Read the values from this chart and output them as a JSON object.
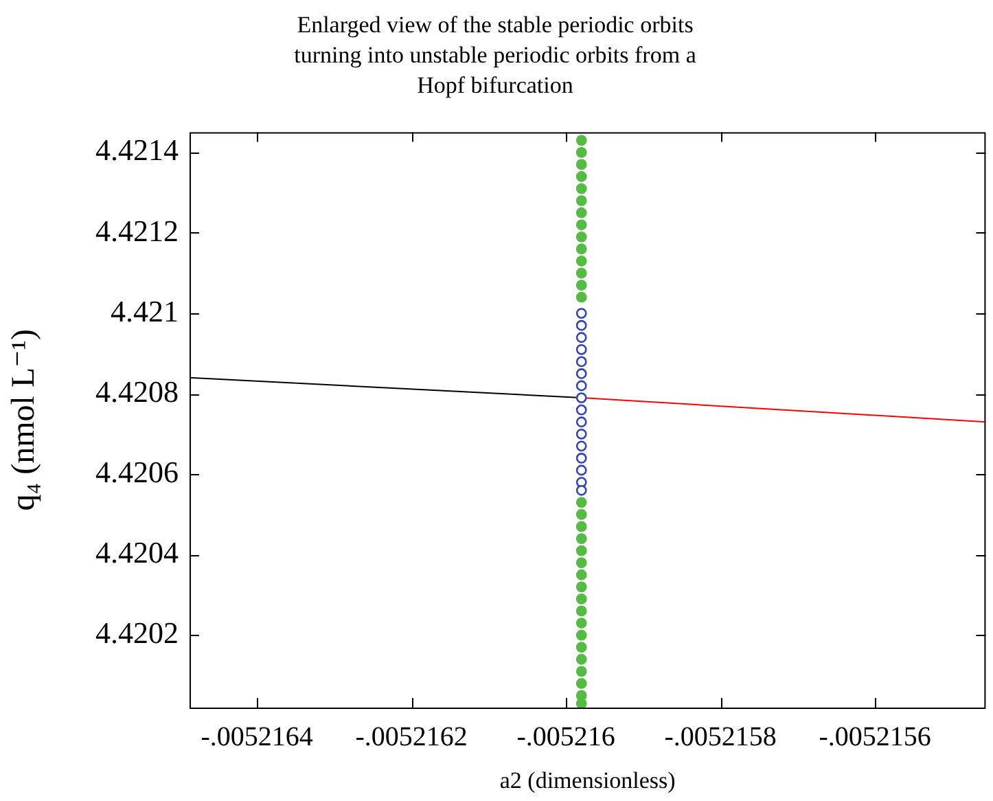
{
  "chart_data": {
    "type": "line",
    "title": "Enlarged view of the stable periodic orbits\nturning into unstable periodic orbits from a\nHopf bifurcation",
    "xlabel": "a2 (dimensionless)",
    "ylabel": "q₄ (nmol L⁻¹)",
    "xlim": [
      -0.0052164873,
      -0.0052154567
    ],
    "ylim": [
      4.42002,
      4.42145
    ],
    "xticks": [
      {
        "value": -0.0052164,
        "label": "-.0052164"
      },
      {
        "value": -0.0052162,
        "label": "-.0052162"
      },
      {
        "value": -0.005216,
        "label": "-.005216"
      },
      {
        "value": -0.0052158,
        "label": "-.0052158"
      },
      {
        "value": -0.0052156,
        "label": "-.0052156"
      }
    ],
    "yticks": [
      4.4202,
      4.4204,
      4.4206,
      4.4208,
      4.421,
      4.4212,
      4.4214
    ],
    "grid": false,
    "legend": false,
    "series": [
      {
        "color": "#000000",
        "marker": "none",
        "line_style": "solid",
        "x": [
          -0.0052164873,
          -0.00521598
        ],
        "values": [
          4.42084,
          4.42079
        ]
      },
      {
        "color": "#ff0000",
        "marker": "none",
        "line_style": "solid",
        "x": [
          -0.00521598,
          -0.0052154567
        ],
        "values": [
          4.42079,
          4.42073
        ]
      },
      {
        "type": "scatter",
        "color": "#55bb44",
        "marker": "circle",
        "x": [
          -0.00521598,
          -0.00521598,
          -0.00521598,
          -0.00521598,
          -0.00521598,
          -0.00521598,
          -0.00521598,
          -0.00521598,
          -0.00521598,
          -0.00521598,
          -0.00521598,
          -0.00521598,
          -0.00521598,
          -0.00521598,
          -0.00521598,
          -0.00521598,
          -0.00521598,
          -0.00521598,
          -0.00521598,
          -0.00521598,
          -0.00521598,
          -0.00521598,
          -0.00521598,
          -0.00521598,
          -0.00521598,
          -0.00521598,
          -0.00521598,
          -0.00521598,
          -0.00521598,
          -0.00521598,
          -0.00521598,
          -0.00521598
        ],
        "values": [
          4.42143,
          4.4214,
          4.42137,
          4.42134,
          4.42131,
          4.42128,
          4.42125,
          4.42122,
          4.42119,
          4.42116,
          4.42113,
          4.4211,
          4.42107,
          4.42104,
          4.42053,
          4.4205,
          4.42047,
          4.42044,
          4.42041,
          4.42038,
          4.42035,
          4.42032,
          4.42029,
          4.42026,
          4.42023,
          4.4202,
          4.42017,
          4.42014,
          4.42011,
          4.42008,
          4.42005,
          4.42003
        ]
      },
      {
        "type": "scatter",
        "color": "#3344bb",
        "marker": "circle",
        "x": [
          -0.00521598,
          -0.00521598,
          -0.00521598,
          -0.00521598,
          -0.00521598,
          -0.00521598,
          -0.00521598,
          -0.00521598,
          -0.00521598,
          -0.00521598,
          -0.00521598,
          -0.00521598,
          -0.00521598,
          -0.00521598,
          -0.00521598,
          -0.00521598
        ],
        "values": [
          4.421,
          4.42097,
          4.42094,
          4.42091,
          4.42088,
          4.42085,
          4.42082,
          4.42079,
          4.42076,
          4.42073,
          4.4207,
          4.42067,
          4.42064,
          4.42061,
          4.42058,
          4.42056
        ]
      }
    ]
  }
}
